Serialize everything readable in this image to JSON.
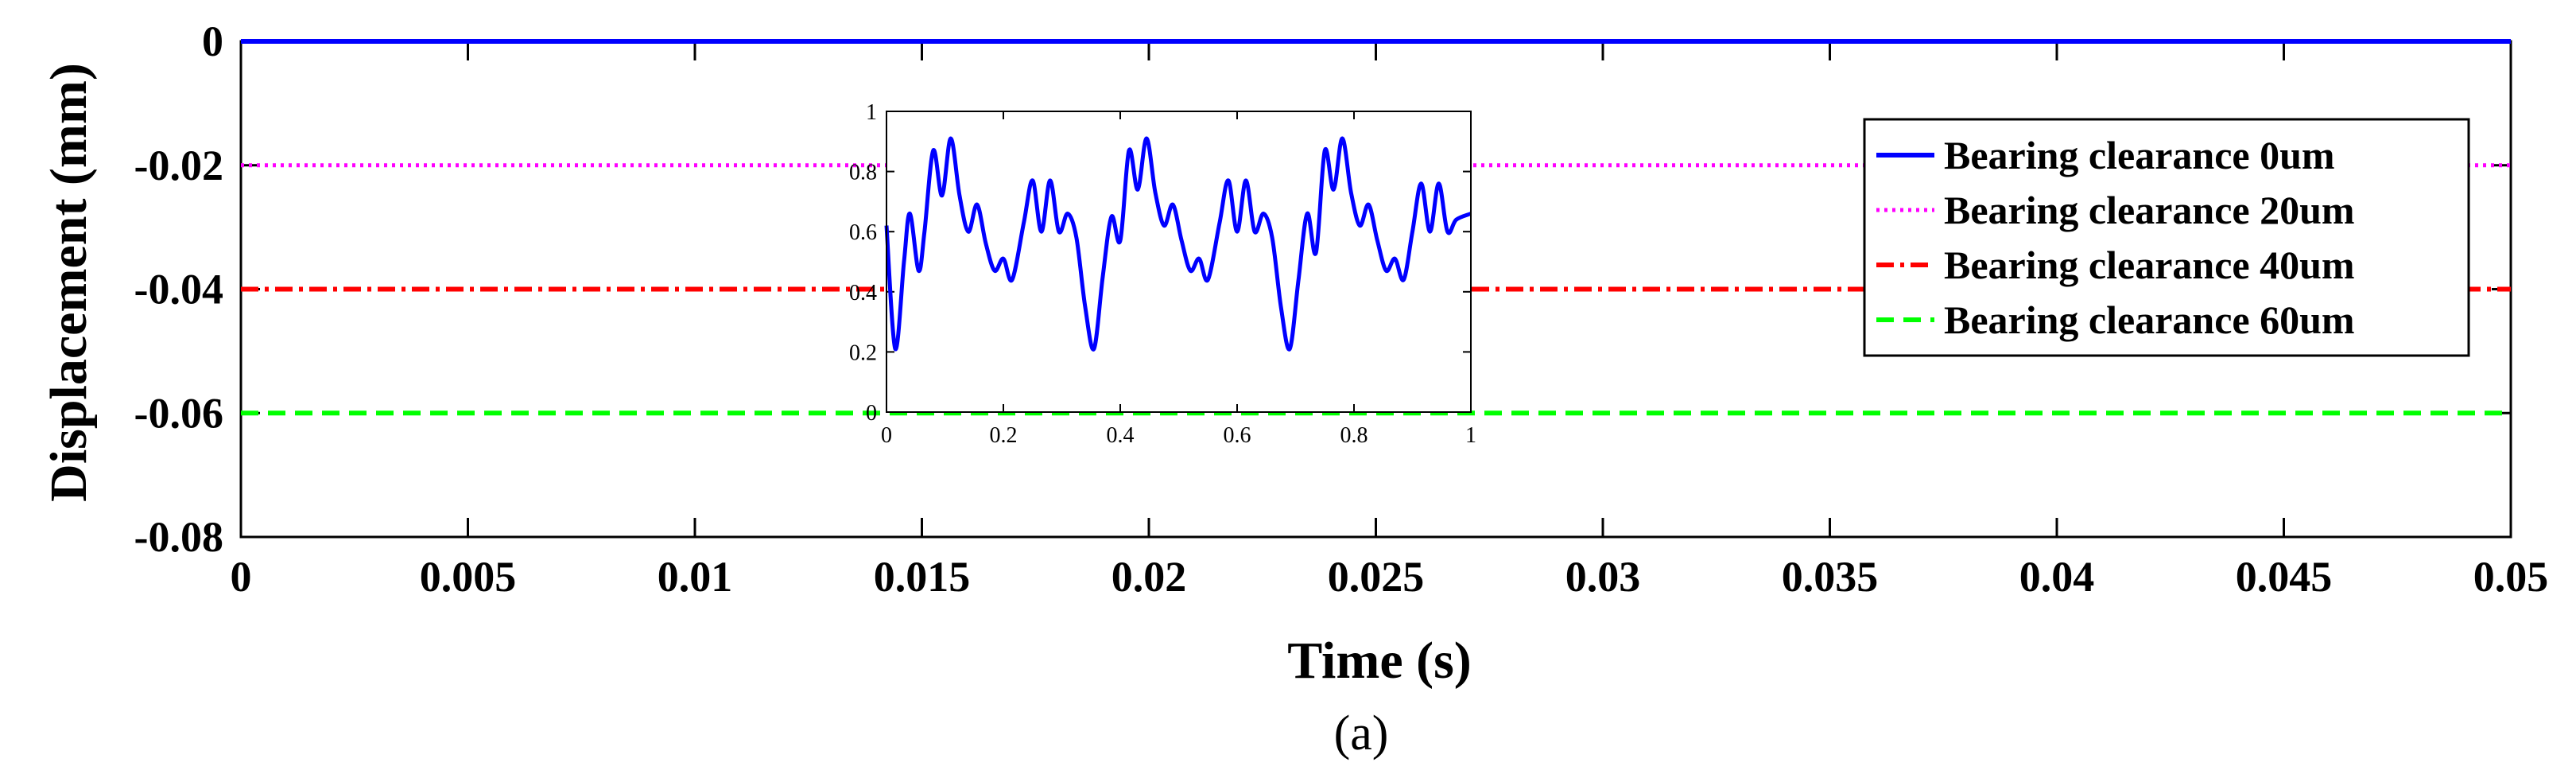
{
  "chart_data": {
    "type": "line",
    "xlabel": "Time  (s)",
    "ylabel": "Displacement  (mm)",
    "xlim": [
      0,
      0.05
    ],
    "ylim": [
      -0.08,
      0
    ],
    "x_ticks": [
      "0",
      "0.005",
      "0.01",
      "0.015",
      "0.02",
      "0.025",
      "0.03",
      "0.035",
      "0.04",
      "0.045",
      "0.05"
    ],
    "y_ticks": [
      "0",
      "-0.02",
      "-0.04",
      "-0.06",
      "-0.08"
    ],
    "grid": false,
    "legend_position": "top-right",
    "series": [
      {
        "name": "Bearing clearance 0um",
        "color": "#0000ff",
        "style": "solid",
        "x": [
          0,
          0.05
        ],
        "y": [
          0,
          0
        ]
      },
      {
        "name": "Bearing clearance 20um",
        "color": "#ff00ff",
        "style": "dotted",
        "x": [
          0,
          0.05
        ],
        "y": [
          -0.02,
          -0.02
        ]
      },
      {
        "name": "Bearing clearance 40um",
        "color": "#ff0000",
        "style": "dashdot",
        "x": [
          0,
          0.05
        ],
        "y": [
          -0.04,
          -0.04
        ]
      },
      {
        "name": "Bearing clearance 60um",
        "color": "#00ff00",
        "style": "dashed",
        "x": [
          0,
          0.05
        ],
        "y": [
          -0.06,
          -0.06
        ]
      }
    ],
    "inset": {
      "xlim": [
        0,
        1
      ],
      "ylim": [
        0,
        1
      ],
      "x_ticks": [
        "0",
        "0.2",
        "0.4",
        "0.6",
        "0.8",
        "1"
      ],
      "y_ticks": [
        "1",
        "0.8",
        "0.6",
        "0.4",
        "0.2",
        "0"
      ],
      "color": "#0000ff",
      "points": [
        [
          0,
          0.62
        ],
        [
          0.015,
          0.21
        ],
        [
          0.03,
          0.5
        ],
        [
          0.04,
          0.66
        ],
        [
          0.055,
          0.47
        ],
        [
          0.065,
          0.6
        ],
        [
          0.08,
          0.87
        ],
        [
          0.095,
          0.72
        ],
        [
          0.11,
          0.91
        ],
        [
          0.125,
          0.72
        ],
        [
          0.14,
          0.6
        ],
        [
          0.155,
          0.69
        ],
        [
          0.17,
          0.56
        ],
        [
          0.185,
          0.47
        ],
        [
          0.2,
          0.51
        ],
        [
          0.215,
          0.44
        ],
        [
          0.235,
          0.63
        ],
        [
          0.25,
          0.77
        ],
        [
          0.265,
          0.6
        ],
        [
          0.28,
          0.77
        ],
        [
          0.295,
          0.6
        ],
        [
          0.31,
          0.66
        ],
        [
          0.325,
          0.58
        ],
        [
          0.34,
          0.35
        ],
        [
          0.355,
          0.21
        ],
        [
          0.37,
          0.45
        ],
        [
          0.385,
          0.65
        ],
        [
          0.4,
          0.57
        ],
        [
          0.415,
          0.87
        ],
        [
          0.43,
          0.74
        ],
        [
          0.445,
          0.91
        ],
        [
          0.46,
          0.73
        ],
        [
          0.475,
          0.62
        ],
        [
          0.49,
          0.69
        ],
        [
          0.505,
          0.57
        ],
        [
          0.52,
          0.47
        ],
        [
          0.535,
          0.51
        ],
        [
          0.55,
          0.44
        ],
        [
          0.57,
          0.63
        ],
        [
          0.585,
          0.77
        ],
        [
          0.6,
          0.6
        ],
        [
          0.615,
          0.77
        ],
        [
          0.63,
          0.6
        ],
        [
          0.645,
          0.66
        ],
        [
          0.66,
          0.58
        ],
        [
          0.675,
          0.35
        ],
        [
          0.69,
          0.21
        ],
        [
          0.705,
          0.44
        ],
        [
          0.72,
          0.66
        ],
        [
          0.735,
          0.53
        ],
        [
          0.75,
          0.87
        ],
        [
          0.765,
          0.74
        ],
        [
          0.78,
          0.91
        ],
        [
          0.795,
          0.73
        ],
        [
          0.81,
          0.62
        ],
        [
          0.825,
          0.69
        ],
        [
          0.84,
          0.57
        ],
        [
          0.855,
          0.47
        ],
        [
          0.87,
          0.51
        ],
        [
          0.885,
          0.44
        ],
        [
          0.9,
          0.6
        ],
        [
          0.915,
          0.76
        ],
        [
          0.93,
          0.6
        ],
        [
          0.945,
          0.76
        ],
        [
          0.96,
          0.6
        ],
        [
          0.975,
          0.64
        ],
        [
          1.0,
          0.66
        ]
      ]
    }
  },
  "caption": "(a)"
}
